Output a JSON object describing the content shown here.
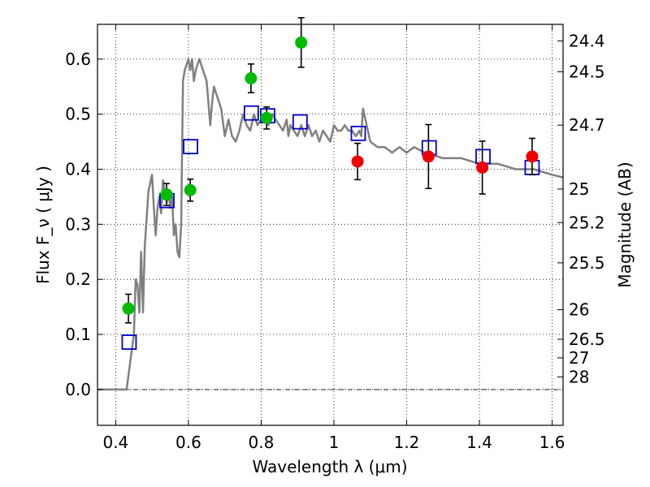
{
  "chart_data": {
    "type": "scatter",
    "title": "",
    "xlabel": "Wavelength  λ (μm)",
    "ylabel": "Flux  F_ν  ( μJy )",
    "ylabel_right": "Magnitude (AB)",
    "xlim": [
      0.35,
      1.63
    ],
    "ylim": [
      -0.065,
      0.663
    ],
    "grid": true,
    "x_ticks": [
      0.4,
      0.6,
      0.8,
      1.0,
      1.2,
      1.4,
      1.6
    ],
    "x_tick_labels": [
      "0.4",
      "0.6",
      "0.8",
      "1",
      "1.2",
      "1.4",
      "1.6"
    ],
    "y_ticks": [
      0.0,
      0.1,
      0.2,
      0.3,
      0.4,
      0.5,
      0.6
    ],
    "y_tick_labels": [
      "0.0",
      "0.1",
      "0.2",
      "0.3",
      "0.4",
      "0.5",
      "0.6"
    ],
    "right_ticks": [
      {
        "label": "24.4",
        "flux": 0.633
      },
      {
        "label": "24.5",
        "flux": 0.577
      },
      {
        "label": "24.7",
        "flux": 0.48
      },
      {
        "label": "25",
        "flux": 0.364
      },
      {
        "label": "25.2",
        "flux": 0.303
      },
      {
        "label": "25.5",
        "flux": 0.23
      },
      {
        "label": "26",
        "flux": 0.145
      },
      {
        "label": "26.5",
        "flux": 0.0912
      },
      {
        "label": "27",
        "flux": 0.0575
      },
      {
        "label": "28",
        "flux": 0.0229
      }
    ],
    "colors": {
      "model_line": "#808080",
      "green_points": "#00bb00",
      "red_points": "#ee0000",
      "squares": "#0000cc",
      "zero_line": "#000000",
      "grid": "#000000"
    },
    "series": [
      {
        "name": "model SED",
        "kind": "line",
        "x": [
          0.35,
          0.43,
          0.44,
          0.45,
          0.455,
          0.46,
          0.465,
          0.47,
          0.475,
          0.48,
          0.49,
          0.5,
          0.505,
          0.51,
          0.515,
          0.52,
          0.525,
          0.53,
          0.54,
          0.545,
          0.55,
          0.555,
          0.56,
          0.565,
          0.57,
          0.575,
          0.58,
          0.585,
          0.59,
          0.6,
          0.605,
          0.61,
          0.615,
          0.62,
          0.63,
          0.64,
          0.65,
          0.66,
          0.665,
          0.67,
          0.68,
          0.69,
          0.7,
          0.71,
          0.72,
          0.73,
          0.74,
          0.75,
          0.76,
          0.77,
          0.78,
          0.79,
          0.8,
          0.81,
          0.82,
          0.83,
          0.84,
          0.85,
          0.86,
          0.87,
          0.875,
          0.88,
          0.89,
          0.9,
          0.91,
          0.92,
          0.93,
          0.94,
          0.95,
          0.96,
          0.97,
          0.98,
          0.99,
          1.0,
          1.01,
          1.02,
          1.03,
          1.04,
          1.05,
          1.06,
          1.07,
          1.075,
          1.08,
          1.1,
          1.12,
          1.14,
          1.16,
          1.18,
          1.2,
          1.22,
          1.25,
          1.3,
          1.35,
          1.4,
          1.45,
          1.5,
          1.55,
          1.6,
          1.63
        ],
        "y": [
          0.0,
          0.0,
          0.05,
          0.1,
          0.2,
          0.19,
          0.14,
          0.25,
          0.14,
          0.26,
          0.36,
          0.39,
          0.33,
          0.28,
          0.33,
          0.35,
          0.32,
          0.38,
          0.34,
          0.36,
          0.33,
          0.35,
          0.28,
          0.3,
          0.25,
          0.24,
          0.3,
          0.56,
          0.58,
          0.6,
          0.58,
          0.6,
          0.56,
          0.58,
          0.6,
          0.58,
          0.56,
          0.48,
          0.52,
          0.55,
          0.53,
          0.51,
          0.46,
          0.49,
          0.46,
          0.45,
          0.47,
          0.5,
          0.48,
          0.47,
          0.5,
          0.48,
          0.49,
          0.5,
          0.48,
          0.5,
          0.49,
          0.48,
          0.47,
          0.49,
          0.46,
          0.48,
          0.47,
          0.46,
          0.48,
          0.46,
          0.48,
          0.46,
          0.47,
          0.45,
          0.47,
          0.46,
          0.45,
          0.48,
          0.47,
          0.47,
          0.48,
          0.47,
          0.47,
          0.46,
          0.47,
          0.46,
          0.51,
          0.45,
          0.44,
          0.44,
          0.43,
          0.44,
          0.43,
          0.44,
          0.43,
          0.42,
          0.42,
          0.41,
          0.41,
          0.4,
          0.4,
          0.39,
          0.385
        ]
      },
      {
        "name": "green photometry",
        "kind": "points",
        "x": [
          0.435,
          0.54,
          0.605,
          0.772,
          0.815,
          0.91
        ],
        "y": [
          0.147,
          0.354,
          0.362,
          0.565,
          0.493,
          0.63
        ],
        "err": [
          0.026,
          0.02,
          0.02,
          0.026,
          0.02,
          0.045
        ]
      },
      {
        "name": "red photometry",
        "kind": "points",
        "x": [
          1.065,
          1.26,
          1.408,
          1.545
        ],
        "y": [
          0.414,
          0.423,
          0.403,
          0.423
        ],
        "err": [
          0.033,
          0.058,
          0.048,
          0.033
        ]
      },
      {
        "name": "model bandpass fluxes",
        "kind": "squares",
        "x": [
          0.437,
          0.541,
          0.606,
          0.773,
          0.818,
          0.907,
          1.067,
          1.262,
          1.41,
          1.545
        ],
        "y": [
          0.086,
          0.343,
          0.441,
          0.502,
          0.497,
          0.486,
          0.465,
          0.439,
          0.423,
          0.403
        ]
      }
    ]
  }
}
